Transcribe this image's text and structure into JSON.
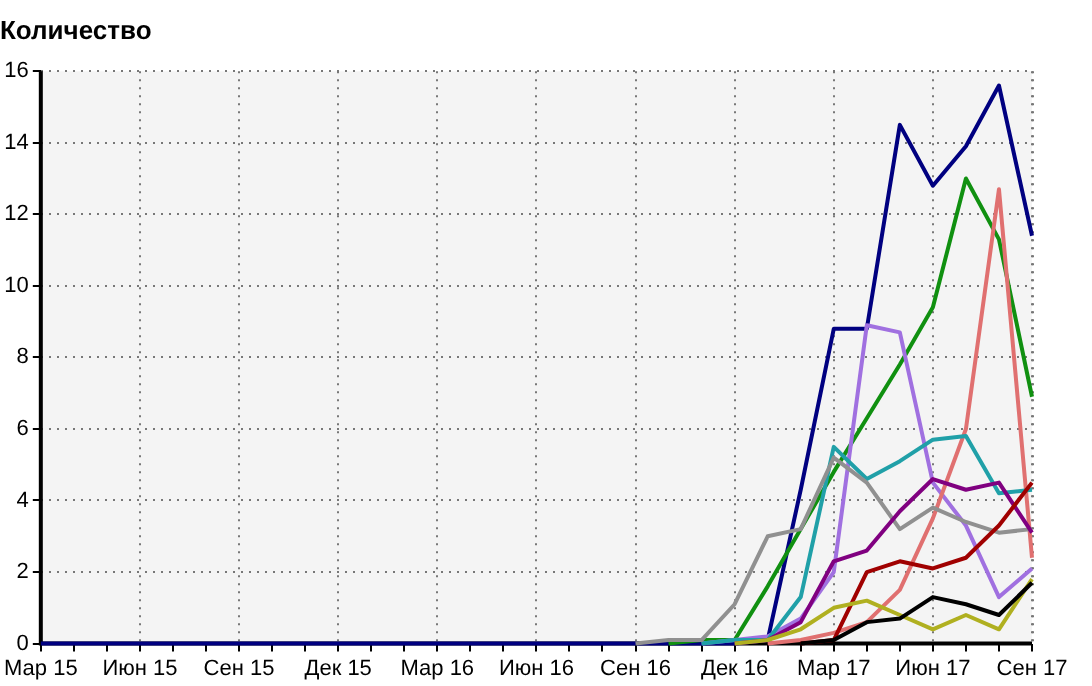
{
  "chart_data": {
    "type": "line",
    "ylabel": "Количество",
    "categories": [
      "Мар 15",
      null,
      null,
      "Июн 15",
      null,
      null,
      "Сен 15",
      null,
      null,
      "Дек 15",
      null,
      null,
      "Мар 16",
      null,
      null,
      "Июн 16",
      null,
      null,
      "Сен 16",
      null,
      null,
      "Дек 16",
      null,
      null,
      "Мар 17",
      null,
      null,
      "Июн 17",
      null,
      null,
      "Сен 17"
    ],
    "series": [
      {
        "color": "#000080",
        "values": [
          0,
          0,
          0,
          0,
          0,
          0,
          0,
          0,
          0,
          0,
          0,
          0,
          0,
          0,
          0,
          0,
          0,
          0,
          0,
          0,
          0,
          0,
          0.1,
          4.3,
          8.8,
          8.8,
          14.5,
          12.8,
          13.9,
          15.6,
          11.4
        ]
      },
      {
        "color": "#109010",
        "values": [
          null,
          null,
          null,
          null,
          null,
          null,
          null,
          null,
          null,
          null,
          null,
          null,
          null,
          null,
          null,
          null,
          null,
          null,
          null,
          0,
          0.1,
          0.1,
          1.6,
          3.2,
          4.8,
          6.3,
          7.8,
          9.4,
          13.0,
          11.3,
          6.9
        ]
      },
      {
        "color": "#a070e0",
        "values": [
          null,
          null,
          null,
          null,
          null,
          null,
          null,
          null,
          null,
          null,
          null,
          null,
          null,
          null,
          null,
          null,
          null,
          null,
          null,
          null,
          0,
          0.1,
          0.2,
          0.7,
          2.0,
          8.9,
          8.7,
          4.5,
          3.3,
          1.3,
          2.1
        ]
      },
      {
        "color": "#e07070",
        "values": [
          null,
          null,
          null,
          null,
          null,
          null,
          null,
          null,
          null,
          null,
          null,
          null,
          null,
          null,
          null,
          null,
          null,
          null,
          null,
          null,
          null,
          null,
          0,
          0.1,
          0.3,
          0.6,
          1.5,
          3.5,
          6.0,
          12.7,
          2.4
        ]
      },
      {
        "color": "#20a0a8",
        "values": [
          null,
          null,
          null,
          null,
          null,
          null,
          null,
          null,
          null,
          null,
          null,
          null,
          null,
          null,
          null,
          null,
          null,
          null,
          null,
          null,
          0,
          0.1,
          0.1,
          1.3,
          5.5,
          4.6,
          5.1,
          5.7,
          5.8,
          4.2,
          4.3
        ]
      },
      {
        "color": "#909090",
        "values": [
          null,
          null,
          null,
          null,
          null,
          null,
          null,
          null,
          null,
          null,
          null,
          null,
          null,
          null,
          null,
          null,
          null,
          null,
          0,
          0.1,
          0.1,
          1.1,
          3.0,
          3.2,
          5.2,
          4.5,
          3.2,
          3.8,
          3.4,
          3.1,
          3.2
        ]
      },
      {
        "color": "#800080",
        "values": [
          null,
          null,
          null,
          null,
          null,
          null,
          null,
          null,
          null,
          null,
          null,
          null,
          null,
          null,
          null,
          null,
          null,
          null,
          null,
          null,
          null,
          0,
          0.1,
          0.6,
          2.3,
          2.6,
          3.7,
          4.6,
          4.3,
          4.5,
          3.1
        ]
      },
      {
        "color": "#a00000",
        "values": [
          null,
          null,
          null,
          null,
          null,
          null,
          null,
          null,
          null,
          null,
          null,
          null,
          null,
          null,
          null,
          null,
          null,
          null,
          null,
          null,
          null,
          null,
          null,
          0,
          0.1,
          2.0,
          2.3,
          2.1,
          2.4,
          3.3,
          4.5
        ]
      },
      {
        "color": "#b0b020",
        "values": [
          null,
          null,
          null,
          null,
          null,
          null,
          null,
          null,
          null,
          null,
          null,
          null,
          null,
          null,
          null,
          null,
          null,
          null,
          null,
          null,
          null,
          0,
          0.1,
          0.4,
          1.0,
          1.2,
          0.8,
          0.4,
          0.8,
          0.4,
          1.8
        ]
      },
      {
        "color": "#000000",
        "values": [
          null,
          null,
          null,
          null,
          null,
          null,
          null,
          null,
          null,
          null,
          null,
          null,
          null,
          null,
          null,
          null,
          null,
          null,
          null,
          null,
          null,
          null,
          null,
          0,
          0.1,
          0.6,
          0.7,
          1.3,
          1.1,
          0.8,
          1.7
        ]
      }
    ],
    "ylim": [
      0,
      16
    ],
    "yticks": [
      0,
      2,
      4,
      6,
      8,
      10,
      12,
      14,
      16
    ],
    "grid": true,
    "marker": "none",
    "line_style": "solid"
  }
}
